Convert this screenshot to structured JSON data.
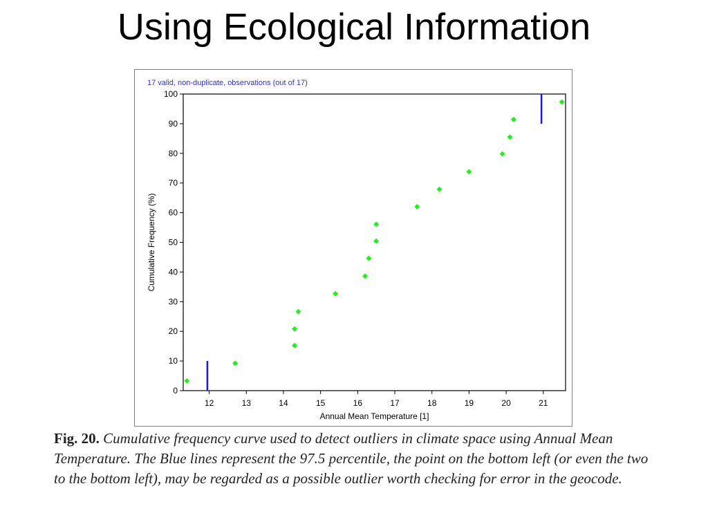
{
  "slide": {
    "title": "Using Ecological Information"
  },
  "caption": {
    "label": "Fig. 20.",
    "text": "Cumulative frequency curve used to detect outliers in climate space using Annual Mean Temperature. The Blue lines represent the 97.5 percentile, the point on the bottom left (or even the two to the bottom left), may be regarded as a possible outlier worth checking for error in the geocode."
  },
  "chart_data": {
    "type": "scatter",
    "title": "17 valid, non-duplicate, observations (out of 17)",
    "xlabel": "Annual Mean Temperature [1]",
    "ylabel": "Cumulative Frequency (%)",
    "xlim": [
      11.3,
      21.6
    ],
    "ylim": [
      0,
      100
    ],
    "xticks": [
      12,
      13,
      14,
      15,
      16,
      17,
      18,
      19,
      20,
      21
    ],
    "yticks": [
      0,
      10,
      20,
      30,
      40,
      50,
      60,
      70,
      80,
      90,
      100
    ],
    "grid": false,
    "colors": {
      "points": "#22ee22",
      "percentile_lines": "#1a1ad6",
      "title": "#3030c0",
      "axis": "#000000"
    },
    "series": [
      {
        "x": [
          11.4,
          12.7,
          14.3,
          14.3,
          14.4,
          15.4,
          16.2,
          16.3,
          16.5,
          16.5,
          17.6,
          18.2,
          19.0,
          19.9,
          20.1,
          20.2,
          21.5
        ],
        "y": [
          3.3,
          9.2,
          15.2,
          20.8,
          26.6,
          32.7,
          38.6,
          44.6,
          50.4,
          56.1,
          62.0,
          67.9,
          73.8,
          79.8,
          85.5,
          91.4,
          97.3
        ]
      }
    ],
    "percentile_lines": [
      {
        "x": 11.95,
        "y_from": 0,
        "y_to": 10
      },
      {
        "x": 20.95,
        "y_from": 90,
        "y_to": 100
      }
    ]
  }
}
